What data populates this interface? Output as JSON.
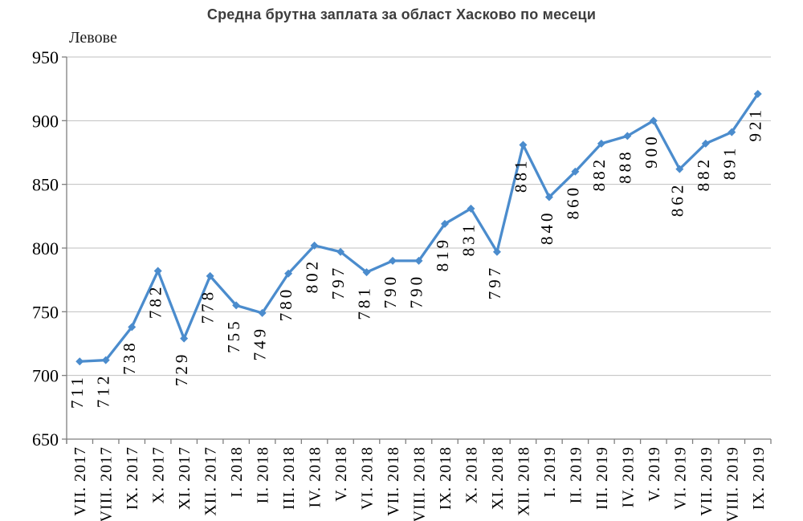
{
  "chart_data": {
    "type": "line",
    "title": "Средна брутна заплата за област Хасково по месеци",
    "ylabel": "Левове",
    "xlabel": "",
    "categories": [
      "VII. 2017",
      "VIII. 2017",
      "IX. 2017",
      "X. 2017",
      "XI. 2017",
      "XII. 2017",
      "I. 2018",
      "II. 2018",
      "III. 2018",
      "IV. 2018",
      "V. 2018",
      "VI. 2018",
      "VII. 2018",
      "VIII. 2018",
      "IX. 2018",
      "X. 2018",
      "XI. 2018",
      "XII. 2018",
      "I. 2019",
      "II. 2019",
      "III. 2019",
      "IV. 2019",
      "V. 2019",
      "VI. 2019",
      "VII. 2019",
      "VIII. 2019",
      "IX. 2019"
    ],
    "values": [
      711,
      712,
      738,
      782,
      729,
      778,
      755,
      749,
      780,
      802,
      797,
      781,
      790,
      790,
      819,
      831,
      797,
      881,
      840,
      860,
      882,
      888,
      900,
      862,
      882,
      891,
      921
    ],
    "ylim": [
      650,
      950
    ],
    "yticks": [
      650,
      700,
      750,
      800,
      850,
      900,
      950
    ],
    "grid": true,
    "legend": "none",
    "data_labels": true,
    "label_rotation_deg": -90,
    "marker": "diamond",
    "colors": {
      "line": "#4b8ccd",
      "marker": "#4b8ccd",
      "grid": "#bfbfbf",
      "axis": "#7f7f7f",
      "title_text": "#3d3d3d",
      "label_text": "#000000"
    }
  }
}
